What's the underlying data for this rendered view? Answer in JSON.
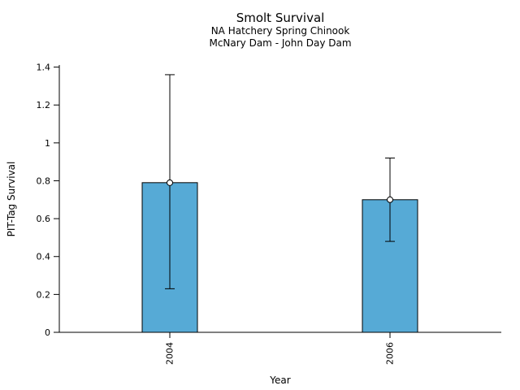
{
  "chart_data": {
    "type": "bar",
    "title": "Smolt Survival",
    "subtitle1": "NA Hatchery Spring Chinook",
    "subtitle2": "McNary Dam - John Day Dam",
    "xlabel": "Year",
    "ylabel": "PIT-Tag Survival",
    "categories": [
      "2004",
      "2006"
    ],
    "series": [
      {
        "name": "PIT-Tag Survival",
        "values": [
          0.79,
          0.7
        ],
        "error_low": [
          0.23,
          0.48
        ],
        "error_high": [
          1.36,
          0.92
        ]
      }
    ],
    "ylim": [
      0,
      1.4
    ],
    "yticks": [
      0,
      0.2,
      0.4,
      0.6,
      0.8,
      1,
      1.2,
      1.4
    ],
    "ytick_labels": [
      "0",
      "0.2",
      "0.4",
      "0.6",
      "0.8",
      "1",
      "1.2",
      "1.4"
    ],
    "bar_color": "#56AAD6",
    "bar_border_color": "#000000",
    "axis_color": "#000000",
    "marker": "open-circle",
    "grid": false,
    "legend": false
  }
}
